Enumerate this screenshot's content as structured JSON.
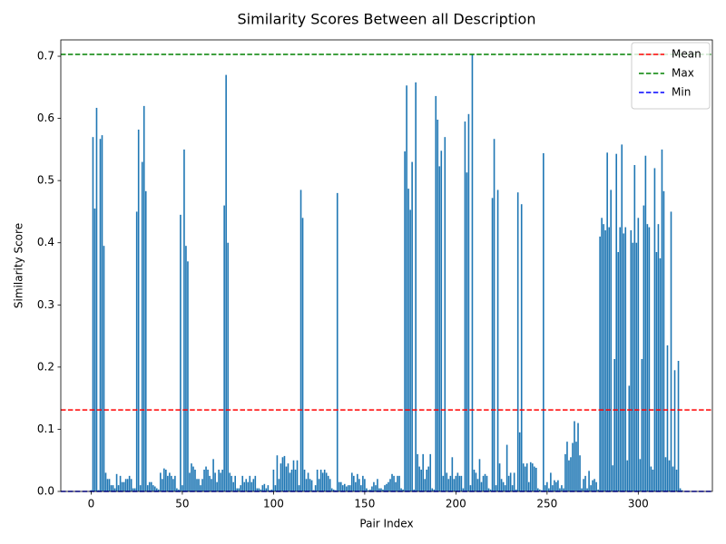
{
  "chart_data": {
    "type": "bar",
    "title": "Similarity Scores Between all Description",
    "x_label": "Pair Index",
    "y_label": "Similarity Score",
    "color": "#1f77b4",
    "x": [
      0,
      1,
      2,
      3,
      4,
      5,
      6,
      7,
      8,
      9,
      10,
      11,
      12,
      13,
      14,
      15,
      16,
      17,
      18,
      19,
      20,
      21,
      22,
      23,
      24,
      25,
      26,
      27,
      28,
      29,
      30,
      31,
      32,
      33,
      34,
      35,
      36,
      37,
      38,
      39,
      40,
      41,
      42,
      43,
      44,
      45,
      46,
      47,
      48,
      49,
      50,
      51,
      52,
      53,
      54,
      55,
      56,
      57,
      58,
      59,
      60,
      61,
      62,
      63,
      64,
      65,
      66,
      67,
      68,
      69,
      70,
      71,
      72,
      73,
      74,
      75,
      76,
      77,
      78,
      79,
      80,
      81,
      82,
      83,
      84,
      85,
      86,
      87,
      88,
      89,
      90,
      91,
      92,
      93,
      94,
      95,
      96,
      97,
      98,
      99,
      100,
      101,
      102,
      103,
      104,
      105,
      106,
      107,
      108,
      109,
      110,
      111,
      112,
      113,
      114,
      115,
      116,
      117,
      118,
      119,
      120,
      121,
      122,
      123,
      124,
      125,
      126,
      127,
      128,
      129,
      130,
      131,
      132,
      133,
      134,
      135,
      136,
      137,
      138,
      139,
      140,
      141,
      142,
      143,
      144,
      145,
      146,
      147,
      148,
      149,
      150,
      151,
      152,
      153,
      154,
      155,
      156,
      157,
      158,
      159,
      160,
      161,
      162,
      163,
      164,
      165,
      166,
      167,
      168,
      169,
      170,
      171,
      172,
      173,
      174,
      175,
      176,
      177,
      178,
      179,
      180,
      181,
      182,
      183,
      184,
      185,
      186,
      187,
      188,
      189,
      190,
      191,
      192,
      193,
      194,
      195,
      196,
      197,
      198,
      199,
      200,
      201,
      202,
      203,
      204,
      205,
      206,
      207,
      208,
      209,
      210,
      211,
      212,
      213,
      214,
      215,
      216,
      217,
      218,
      219,
      220,
      221,
      222,
      223,
      224,
      225,
      226,
      227,
      228,
      229,
      230,
      231,
      232,
      233,
      234,
      235,
      236,
      237,
      238,
      239,
      240,
      241,
      242,
      243,
      244,
      245,
      246,
      247,
      248,
      249,
      250,
      251,
      252,
      253,
      254,
      255,
      256,
      257,
      258,
      259,
      260,
      261,
      262,
      263,
      264,
      265,
      266,
      267,
      268,
      269,
      270,
      271,
      272,
      273,
      274,
      275,
      276,
      277,
      278,
      279,
      280,
      281,
      282,
      283,
      284,
      285,
      286,
      287,
      288,
      289,
      290,
      291,
      292,
      293,
      294,
      295,
      296,
      297,
      298,
      299,
      300,
      301,
      302,
      303,
      304,
      305,
      306,
      307,
      308,
      309,
      310,
      311,
      312,
      313,
      314,
      315,
      316,
      317,
      318,
      319,
      320,
      321,
      322,
      323,
      324
    ],
    "values": [
      0.002,
      0.57,
      0.455,
      0.617,
      0.002,
      0.567,
      0.573,
      0.395,
      0.03,
      0.02,
      0.02,
      0.01,
      0.01,
      0.005,
      0.028,
      0.01,
      0.025,
      0.015,
      0.015,
      0.02,
      0.02,
      0.025,
      0.02,
      0.005,
      0.005,
      0.45,
      0.582,
      0.01,
      0.53,
      0.62,
      0.483,
      0.01,
      0.015,
      0.015,
      0.01,
      0.008,
      0.005,
      0.003,
      0.03,
      0.02,
      0.037,
      0.035,
      0.025,
      0.03,
      0.025,
      0.02,
      0.025,
      0.005,
      0.003,
      0.445,
      0.01,
      0.55,
      0.395,
      0.37,
      0.03,
      0.045,
      0.04,
      0.035,
      0.02,
      0.02,
      0.01,
      0.02,
      0.035,
      0.04,
      0.035,
      0.025,
      0.02,
      0.052,
      0.03,
      0.015,
      0.035,
      0.03,
      0.035,
      0.46,
      0.67,
      0.4,
      0.03,
      0.025,
      0.015,
      0.025,
      0.005,
      0.005,
      0.01,
      0.025,
      0.015,
      0.02,
      0.015,
      0.025,
      0.015,
      0.02,
      0.025,
      0.005,
      0.005,
      0.003,
      0.01,
      0.012,
      0.005,
      0.01,
      0.002,
      0.003,
      0.035,
      0.01,
      0.058,
      0.02,
      0.045,
      0.055,
      0.057,
      0.04,
      0.045,
      0.03,
      0.035,
      0.05,
      0.035,
      0.05,
      0.01,
      0.485,
      0.44,
      0.035,
      0.02,
      0.03,
      0.02,
      0.018,
      0.002,
      0.01,
      0.035,
      0.02,
      0.035,
      0.03,
      0.035,
      0.03,
      0.025,
      0.02,
      0.005,
      0.003,
      0.002,
      0.48,
      0.015,
      0.015,
      0.01,
      0.012,
      0.008,
      0.01,
      0.01,
      0.03,
      0.025,
      0.015,
      0.028,
      0.02,
      0.01,
      0.025,
      0.02,
      0.005,
      0.002,
      0.003,
      0.008,
      0.015,
      0.01,
      0.02,
      0.005,
      0.005,
      0.003,
      0.01,
      0.012,
      0.015,
      0.02,
      0.028,
      0.025,
      0.015,
      0.025,
      0.025,
      0.005,
      0.003,
      0.547,
      0.653,
      0.487,
      0.453,
      0.53,
      0.003,
      0.658,
      0.06,
      0.04,
      0.035,
      0.06,
      0.02,
      0.035,
      0.04,
      0.06,
      0.005,
      0.003,
      0.636,
      0.598,
      0.523,
      0.548,
      0.025,
      0.57,
      0.03,
      0.02,
      0.025,
      0.055,
      0.02,
      0.025,
      0.03,
      0.025,
      0.025,
      0.005,
      0.595,
      0.513,
      0.607,
      0.01,
      0.703,
      0.035,
      0.03,
      0.02,
      0.052,
      0.015,
      0.025,
      0.028,
      0.025,
      0.005,
      0.003,
      0.472,
      0.567,
      0.01,
      0.485,
      0.045,
      0.02,
      0.015,
      0.01,
      0.075,
      0.025,
      0.03,
      0.01,
      0.03,
      0.003,
      0.481,
      0.095,
      0.462,
      0.045,
      0.04,
      0.045,
      0.015,
      0.047,
      0.045,
      0.04,
      0.038,
      0.005,
      0.003,
      0.002,
      0.544,
      0.01,
      0.015,
      0.005,
      0.03,
      0.01,
      0.018,
      0.015,
      0.018,
      0.005,
      0.01,
      0.005,
      0.06,
      0.08,
      0.05,
      0.055,
      0.078,
      0.113,
      0.08,
      0.11,
      0.058,
      0.005,
      0.02,
      0.025,
      0.005,
      0.033,
      0.01,
      0.018,
      0.02,
      0.015,
      0.003,
      0.41,
      0.44,
      0.43,
      0.42,
      0.545,
      0.425,
      0.485,
      0.042,
      0.213,
      0.543,
      0.385,
      0.425,
      0.558,
      0.415,
      0.425,
      0.05,
      0.17,
      0.42,
      0.4,
      0.525,
      0.4,
      0.44,
      0.052,
      0.213,
      0.46,
      0.54,
      0.43,
      0.425,
      0.04,
      0.035,
      0.52,
      0.385,
      0.43,
      0.375,
      0.55,
      0.483,
      0.055,
      0.235,
      0.05,
      0.45,
      0.04,
      0.195,
      0.035,
      0.21,
      0.005,
      0.002
    ],
    "hlines": [
      {
        "name": "Mean",
        "value": 0.131,
        "color": "#ff0000"
      },
      {
        "name": "Max",
        "value": 0.703,
        "color": "#008000"
      },
      {
        "name": "Min",
        "value": 0,
        "color": "#0000ff"
      }
    ],
    "xlim": [
      -16.64,
      340.64
    ],
    "xticks": [
      0,
      50,
      100,
      150,
      200,
      250,
      300
    ],
    "ylim": [
      0,
      0.7263
    ],
    "yticks": [
      {
        "value": 0,
        "label": "0.0"
      },
      0.1,
      0.2,
      0.3,
      0.4,
      0.5,
      0.6,
      0.7
    ],
    "legend": "upper right",
    "grid": false
  }
}
